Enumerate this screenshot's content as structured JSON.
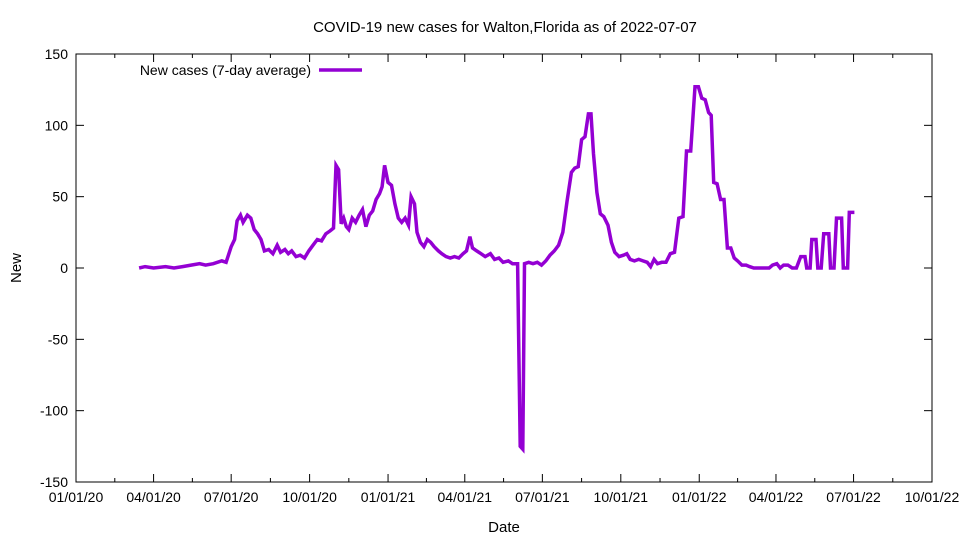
{
  "chart_data": {
    "type": "line",
    "title": "COVID-19 new cases for Walton,Florida as of 2022-07-07",
    "xlabel": "Date",
    "ylabel": "New",
    "xlim": [
      "2020-01-01",
      "2022-10-01"
    ],
    "ylim": [
      -150,
      150
    ],
    "y_ticks": [
      -150,
      -100,
      -50,
      0,
      50,
      100,
      150
    ],
    "x_ticks": [
      {
        "date": "2020-01-01",
        "label": "01/01/20"
      },
      {
        "date": "2020-04-01",
        "label": "04/01/20"
      },
      {
        "date": "2020-07-01",
        "label": "07/01/20"
      },
      {
        "date": "2020-10-01",
        "label": "10/01/20"
      },
      {
        "date": "2021-01-01",
        "label": "01/01/21"
      },
      {
        "date": "2021-04-01",
        "label": "04/01/21"
      },
      {
        "date": "2021-07-01",
        "label": "07/01/21"
      },
      {
        "date": "2021-10-01",
        "label": "10/01/21"
      },
      {
        "date": "2022-01-01",
        "label": "01/01/22"
      },
      {
        "date": "2022-04-01",
        "label": "04/01/22"
      },
      {
        "date": "2022-07-01",
        "label": "07/01/22"
      },
      {
        "date": "2022-10-01",
        "label": "10/01/22"
      }
    ],
    "grid": false,
    "legend_position": "top-left",
    "series": [
      {
        "name": "New cases (7-day average)",
        "color": "#9400d3",
        "points": [
          [
            "2020-03-15",
            0
          ],
          [
            "2020-03-22",
            1
          ],
          [
            "2020-04-01",
            0
          ],
          [
            "2020-04-15",
            1
          ],
          [
            "2020-04-25",
            0
          ],
          [
            "2020-05-05",
            1
          ],
          [
            "2020-05-15",
            2
          ],
          [
            "2020-05-25",
            3
          ],
          [
            "2020-06-01",
            2
          ],
          [
            "2020-06-10",
            3
          ],
          [
            "2020-06-20",
            5
          ],
          [
            "2020-06-25",
            4
          ],
          [
            "2020-07-01",
            15
          ],
          [
            "2020-07-05",
            20
          ],
          [
            "2020-07-08",
            33
          ],
          [
            "2020-07-12",
            37
          ],
          [
            "2020-07-15",
            32
          ],
          [
            "2020-07-20",
            37
          ],
          [
            "2020-07-24",
            35
          ],
          [
            "2020-07-28",
            27
          ],
          [
            "2020-08-01",
            24
          ],
          [
            "2020-08-05",
            20
          ],
          [
            "2020-08-09",
            12
          ],
          [
            "2020-08-14",
            13
          ],
          [
            "2020-08-19",
            10
          ],
          [
            "2020-08-24",
            16
          ],
          [
            "2020-08-28",
            11
          ],
          [
            "2020-09-02",
            13
          ],
          [
            "2020-09-06",
            10
          ],
          [
            "2020-09-10",
            12
          ],
          [
            "2020-09-15",
            8
          ],
          [
            "2020-09-20",
            9
          ],
          [
            "2020-09-25",
            7
          ],
          [
            "2020-09-30",
            12
          ],
          [
            "2020-10-05",
            16
          ],
          [
            "2020-10-10",
            20
          ],
          [
            "2020-10-15",
            19
          ],
          [
            "2020-10-20",
            24
          ],
          [
            "2020-10-25",
            26
          ],
          [
            "2020-10-29",
            28
          ],
          [
            "2020-11-01",
            72
          ],
          [
            "2020-11-04",
            69
          ],
          [
            "2020-11-07",
            31
          ],
          [
            "2020-11-10",
            35
          ],
          [
            "2020-11-13",
            29
          ],
          [
            "2020-11-16",
            27
          ],
          [
            "2020-11-20",
            35
          ],
          [
            "2020-11-24",
            32
          ],
          [
            "2020-11-28",
            37
          ],
          [
            "2020-12-02",
            41
          ],
          [
            "2020-12-06",
            29
          ],
          [
            "2020-12-10",
            37
          ],
          [
            "2020-12-14",
            40
          ],
          [
            "2020-12-18",
            48
          ],
          [
            "2020-12-22",
            52
          ],
          [
            "2020-12-25",
            57
          ],
          [
            "2020-12-28",
            72
          ],
          [
            "2021-01-01",
            60
          ],
          [
            "2021-01-05",
            58
          ],
          [
            "2021-01-09",
            45
          ],
          [
            "2021-01-13",
            35
          ],
          [
            "2021-01-17",
            32
          ],
          [
            "2021-01-21",
            35
          ],
          [
            "2021-01-25",
            30
          ],
          [
            "2021-01-28",
            50
          ],
          [
            "2021-02-01",
            45
          ],
          [
            "2021-02-04",
            25
          ],
          [
            "2021-02-08",
            18
          ],
          [
            "2021-02-12",
            15
          ],
          [
            "2021-02-16",
            20
          ],
          [
            "2021-02-20",
            18
          ],
          [
            "2021-02-24",
            15
          ],
          [
            "2021-03-01",
            12
          ],
          [
            "2021-03-05",
            10
          ],
          [
            "2021-03-10",
            8
          ],
          [
            "2021-03-15",
            7
          ],
          [
            "2021-03-20",
            8
          ],
          [
            "2021-03-25",
            7
          ],
          [
            "2021-03-30",
            10
          ],
          [
            "2021-04-03",
            12
          ],
          [
            "2021-04-07",
            22
          ],
          [
            "2021-04-10",
            14
          ],
          [
            "2021-04-15",
            12
          ],
          [
            "2021-04-20",
            10
          ],
          [
            "2021-04-25",
            8
          ],
          [
            "2021-05-01",
            10
          ],
          [
            "2021-05-06",
            6
          ],
          [
            "2021-05-11",
            7
          ],
          [
            "2021-05-16",
            4
          ],
          [
            "2021-05-22",
            5
          ],
          [
            "2021-05-27",
            3
          ],
          [
            "2021-06-02",
            3
          ],
          [
            "2021-06-05",
            -125
          ],
          [
            "2021-06-08",
            -127
          ],
          [
            "2021-06-10",
            3
          ],
          [
            "2021-06-15",
            4
          ],
          [
            "2021-06-20",
            3
          ],
          [
            "2021-06-25",
            4
          ],
          [
            "2021-06-30",
            2
          ],
          [
            "2021-07-05",
            5
          ],
          [
            "2021-07-10",
            9
          ],
          [
            "2021-07-15",
            12
          ],
          [
            "2021-07-20",
            16
          ],
          [
            "2021-07-25",
            25
          ],
          [
            "2021-07-30",
            47
          ],
          [
            "2021-08-04",
            67
          ],
          [
            "2021-08-08",
            70
          ],
          [
            "2021-08-12",
            71
          ],
          [
            "2021-08-16",
            90
          ],
          [
            "2021-08-20",
            92
          ],
          [
            "2021-08-24",
            108
          ],
          [
            "2021-08-27",
            108
          ],
          [
            "2021-08-30",
            80
          ],
          [
            "2021-09-03",
            53
          ],
          [
            "2021-09-07",
            38
          ],
          [
            "2021-09-11",
            36
          ],
          [
            "2021-09-16",
            30
          ],
          [
            "2021-09-20",
            18
          ],
          [
            "2021-09-24",
            11
          ],
          [
            "2021-09-29",
            8
          ],
          [
            "2021-10-04",
            9
          ],
          [
            "2021-10-08",
            10
          ],
          [
            "2021-10-12",
            6
          ],
          [
            "2021-10-17",
            5
          ],
          [
            "2021-10-22",
            6
          ],
          [
            "2021-10-27",
            5
          ],
          [
            "2021-11-01",
            4
          ],
          [
            "2021-11-05",
            1
          ],
          [
            "2021-11-09",
            6
          ],
          [
            "2021-11-13",
            3
          ],
          [
            "2021-11-18",
            4
          ],
          [
            "2021-11-23",
            4
          ],
          [
            "2021-11-28",
            10
          ],
          [
            "2021-12-03",
            11
          ],
          [
            "2021-12-08",
            35
          ],
          [
            "2021-12-13",
            36
          ],
          [
            "2021-12-17",
            82
          ],
          [
            "2021-12-22",
            82
          ],
          [
            "2021-12-27",
            127
          ],
          [
            "2021-12-31",
            127
          ],
          [
            "2022-01-04",
            119
          ],
          [
            "2022-01-08",
            118
          ],
          [
            "2022-01-12",
            109
          ],
          [
            "2022-01-15",
            107
          ],
          [
            "2022-01-18",
            60
          ],
          [
            "2022-01-22",
            59
          ],
          [
            "2022-01-26",
            48
          ],
          [
            "2022-01-30",
            48
          ],
          [
            "2022-02-03",
            14
          ],
          [
            "2022-02-07",
            14
          ],
          [
            "2022-02-11",
            7
          ],
          [
            "2022-02-15",
            5
          ],
          [
            "2022-02-20",
            2
          ],
          [
            "2022-02-25",
            2
          ],
          [
            "2022-03-01",
            1
          ],
          [
            "2022-03-06",
            0
          ],
          [
            "2022-03-12",
            0
          ],
          [
            "2022-03-18",
            0
          ],
          [
            "2022-03-24",
            0
          ],
          [
            "2022-03-28",
            2
          ],
          [
            "2022-04-02",
            3
          ],
          [
            "2022-04-06",
            0
          ],
          [
            "2022-04-10",
            2
          ],
          [
            "2022-04-15",
            2
          ],
          [
            "2022-04-20",
            0
          ],
          [
            "2022-04-25",
            0
          ],
          [
            "2022-04-30",
            8
          ],
          [
            "2022-05-05",
            8
          ],
          [
            "2022-05-07",
            0
          ],
          [
            "2022-05-11",
            0
          ],
          [
            "2022-05-13",
            20
          ],
          [
            "2022-05-18",
            20
          ],
          [
            "2022-05-20",
            0
          ],
          [
            "2022-05-24",
            0
          ],
          [
            "2022-05-27",
            24
          ],
          [
            "2022-06-02",
            24
          ],
          [
            "2022-06-04",
            0
          ],
          [
            "2022-06-08",
            0
          ],
          [
            "2022-06-11",
            35
          ],
          [
            "2022-06-17",
            35
          ],
          [
            "2022-06-19",
            0
          ],
          [
            "2022-06-24",
            0
          ],
          [
            "2022-06-26",
            39
          ],
          [
            "2022-07-02",
            39
          ]
        ]
      }
    ]
  }
}
